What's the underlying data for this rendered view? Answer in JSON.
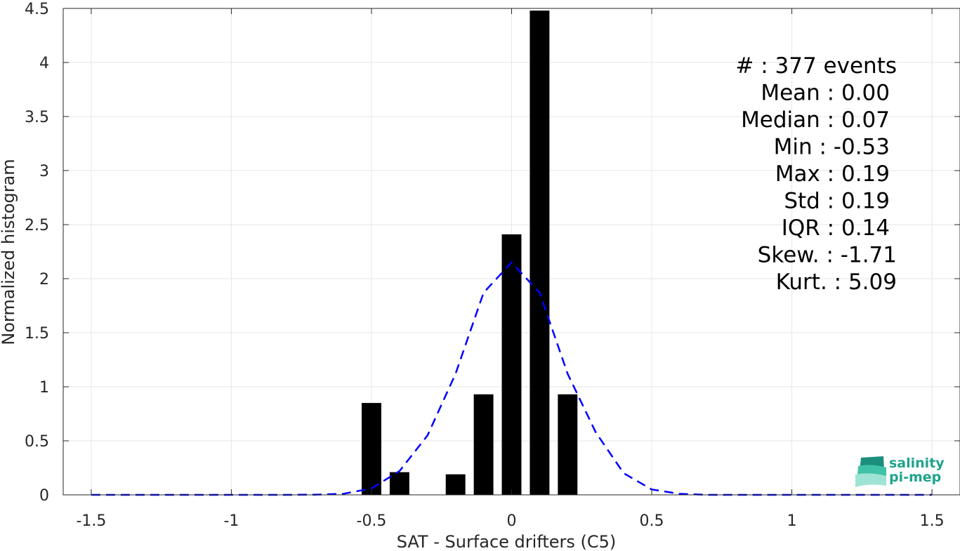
{
  "chart_data": {
    "type": "bar",
    "xlabel": "SAT - Surface drifters (C5)",
    "ylabel": "Normalized histogram",
    "xlim": [
      -1.6,
      1.6
    ],
    "ylim": [
      0,
      4.5
    ],
    "grid": true,
    "xticks": [
      -1.5,
      -1,
      -0.5,
      0,
      0.5,
      1,
      1.5
    ],
    "xtick_labels": [
      "-1.5",
      "-1",
      "-0.5",
      "0",
      "0.5",
      "1",
      "1.5"
    ],
    "yticks": [
      0,
      0.5,
      1,
      1.5,
      2,
      2.5,
      3,
      3.5,
      4,
      4.5
    ],
    "ytick_labels": [
      "0",
      "0.5",
      "1",
      "1.5",
      "2",
      "2.5",
      "3",
      "3.5",
      "4",
      "4.5"
    ],
    "bar_width": 0.07,
    "bars": [
      {
        "x": -0.5,
        "value": 0.85
      },
      {
        "x": -0.4,
        "value": 0.21
      },
      {
        "x": -0.2,
        "value": 0.19
      },
      {
        "x": -0.1,
        "value": 0.93
      },
      {
        "x": 0.0,
        "value": 2.41
      },
      {
        "x": 0.1,
        "value": 4.48
      },
      {
        "x": 0.2,
        "value": 0.93
      }
    ],
    "fit_curve": {
      "style": "dashed",
      "color": "#0000ff",
      "x": [
        -1.5,
        -1.4,
        -1.3,
        -1.2,
        -1.1,
        -1.0,
        -0.9,
        -0.8,
        -0.7,
        -0.6,
        -0.5,
        -0.4,
        -0.3,
        -0.2,
        -0.1,
        0.0,
        0.1,
        0.2,
        0.3,
        0.4,
        0.5,
        0.6,
        0.7,
        0.8,
        0.9,
        1.0,
        1.1,
        1.2,
        1.3,
        1.4,
        1.5
      ],
      "y": [
        0,
        0,
        0,
        0,
        0,
        0,
        0,
        0,
        0.002,
        0.01,
        0.06,
        0.22,
        0.55,
        1.12,
        1.87,
        2.15,
        1.87,
        1.12,
        0.58,
        0.2,
        0.05,
        0.01,
        0,
        0,
        0,
        0,
        0,
        0,
        0,
        0,
        0
      ]
    },
    "stats": [
      {
        "label": "#  : 377 events",
        "align": "right-long"
      },
      {
        "label": "Mean : 0.00"
      },
      {
        "label": "Median : 0.07"
      },
      {
        "label": "Min : -0.53"
      },
      {
        "label": "Max : 0.19"
      },
      {
        "label": "Std : 0.19"
      },
      {
        "label": "IQR : 0.14"
      },
      {
        "label": "Skew. : -1.71",
        "align": "right-long"
      },
      {
        "label": "Kurt. : 5.09",
        "align": "right-long"
      }
    ]
  },
  "logo": {
    "line1": "salinity",
    "line2": "pi-mep",
    "color": "#1fa38c"
  }
}
